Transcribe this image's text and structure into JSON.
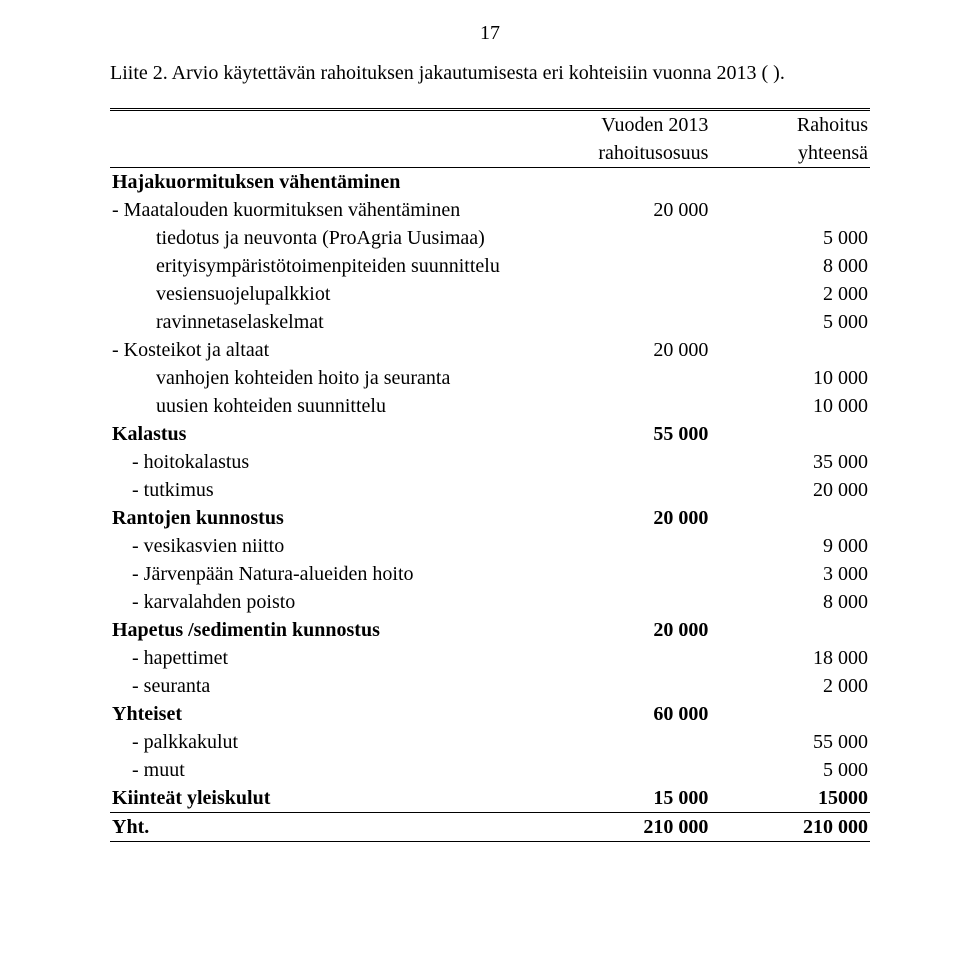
{
  "page_number": "17",
  "caption": "Liite 2. Arvio käytettävän rahoituksen jakautumisesta eri kohteisiin vuonna 2013 ( ).",
  "columns": {
    "blank": "",
    "col1_a": "Vuoden 2013",
    "col1_b": "rahoitusosuus",
    "col2_a": "Rahoitus",
    "col2_b": "yhteensä"
  },
  "rows": [
    {
      "label": "Hajakuormituksen vähentäminen",
      "indent": 0,
      "bold": true,
      "v1": "",
      "v2": ""
    },
    {
      "label": "- Maatalouden kuormituksen vähentäminen",
      "indent": 0,
      "bold": false,
      "v1": "20 000",
      "v2": ""
    },
    {
      "label": "tiedotus ja neuvonta (ProAgria Uusimaa)",
      "indent": 2,
      "bold": false,
      "v1": "",
      "v2": "5 000"
    },
    {
      "label": "erityisympäristötoimenpiteiden suunnittelu",
      "indent": 2,
      "bold": false,
      "v1": "",
      "v2": "8 000"
    },
    {
      "label": "vesiensuojelupalkkiot",
      "indent": 2,
      "bold": false,
      "v1": "",
      "v2": "2 000"
    },
    {
      "label": "ravinnetaselaskelmat",
      "indent": 2,
      "bold": false,
      "v1": "",
      "v2": "5 000"
    },
    {
      "label": "- Kosteikot ja altaat",
      "indent": 0,
      "bold": false,
      "v1": "20 000",
      "v2": ""
    },
    {
      "label": "vanhojen kohteiden hoito ja seuranta",
      "indent": 2,
      "bold": false,
      "v1": "",
      "v2": "10 000"
    },
    {
      "label": "uusien kohteiden suunnittelu",
      "indent": 2,
      "bold": false,
      "v1": "",
      "v2": "10 000"
    },
    {
      "label": "Kalastus",
      "indent": 0,
      "bold": true,
      "v1": "55 000",
      "v2": ""
    },
    {
      "label": "- hoitokalastus",
      "indent": 1,
      "bold": false,
      "v1": "",
      "v2": "35 000"
    },
    {
      "label": "- tutkimus",
      "indent": 1,
      "bold": false,
      "v1": "",
      "v2": "20 000"
    },
    {
      "label": "Rantojen kunnostus",
      "indent": 0,
      "bold": true,
      "v1": "20 000",
      "v2": ""
    },
    {
      "label": "- vesikasvien niitto",
      "indent": 1,
      "bold": false,
      "v1": "",
      "v2": "9 000"
    },
    {
      "label": "- Järvenpään Natura-alueiden hoito",
      "indent": 1,
      "bold": false,
      "v1": "",
      "v2": "3 000"
    },
    {
      "label": "- karvalahden poisto",
      "indent": 1,
      "bold": false,
      "v1": "",
      "v2": "8 000"
    },
    {
      "label": "Hapetus /sedimentin kunnostus",
      "indent": 0,
      "bold": true,
      "v1": "20 000",
      "v2": ""
    },
    {
      "label": "- hapettimet",
      "indent": 1,
      "bold": false,
      "v1": "",
      "v2": "18 000"
    },
    {
      "label": "- seuranta",
      "indent": 1,
      "bold": false,
      "v1": "",
      "v2": "2 000"
    },
    {
      "label": "Yhteiset",
      "indent": 0,
      "bold": true,
      "v1": "60 000",
      "v2": ""
    },
    {
      "label": "- palkkakulut",
      "indent": 1,
      "bold": false,
      "v1": "",
      "v2": "55 000"
    },
    {
      "label": "- muut",
      "indent": 1,
      "bold": false,
      "v1": "",
      "v2": "5 000"
    },
    {
      "label": "Kiinteät yleiskulut",
      "indent": 0,
      "bold": true,
      "v1": "15 000",
      "v2": "15000"
    }
  ],
  "total": {
    "label": "Yht.",
    "v1": "210 000",
    "v2": "210 000"
  },
  "style": {
    "font_family": "Times New Roman",
    "font_size_pt": 15,
    "text_color": "#000000",
    "background_color": "#ffffff"
  }
}
